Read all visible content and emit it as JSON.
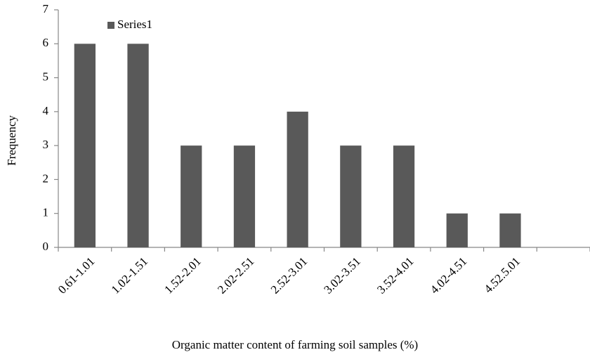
{
  "chart_data": {
    "type": "bar",
    "x_label": "Organic matter content of farming soil samples (%)",
    "y_label": "Frequency",
    "categories": [
      "0.61-1.01",
      "1.02-1.51",
      "1.52-2.01",
      "2.02-2.51",
      "2.52-3.01",
      "3.02-3.51",
      "3.52-4.01",
      "4.02-4.51",
      "4.52.5.01",
      null
    ],
    "series": [
      {
        "name": "Series1",
        "color": "#595959",
        "values": [
          6,
          6,
          3,
          3,
          4,
          3,
          3,
          1,
          1,
          null
        ]
      }
    ],
    "ylim": [
      0,
      7
    ],
    "yticks": [
      0,
      1,
      2,
      3,
      4,
      5,
      6,
      7
    ],
    "grid": false,
    "legend": "top-left"
  }
}
